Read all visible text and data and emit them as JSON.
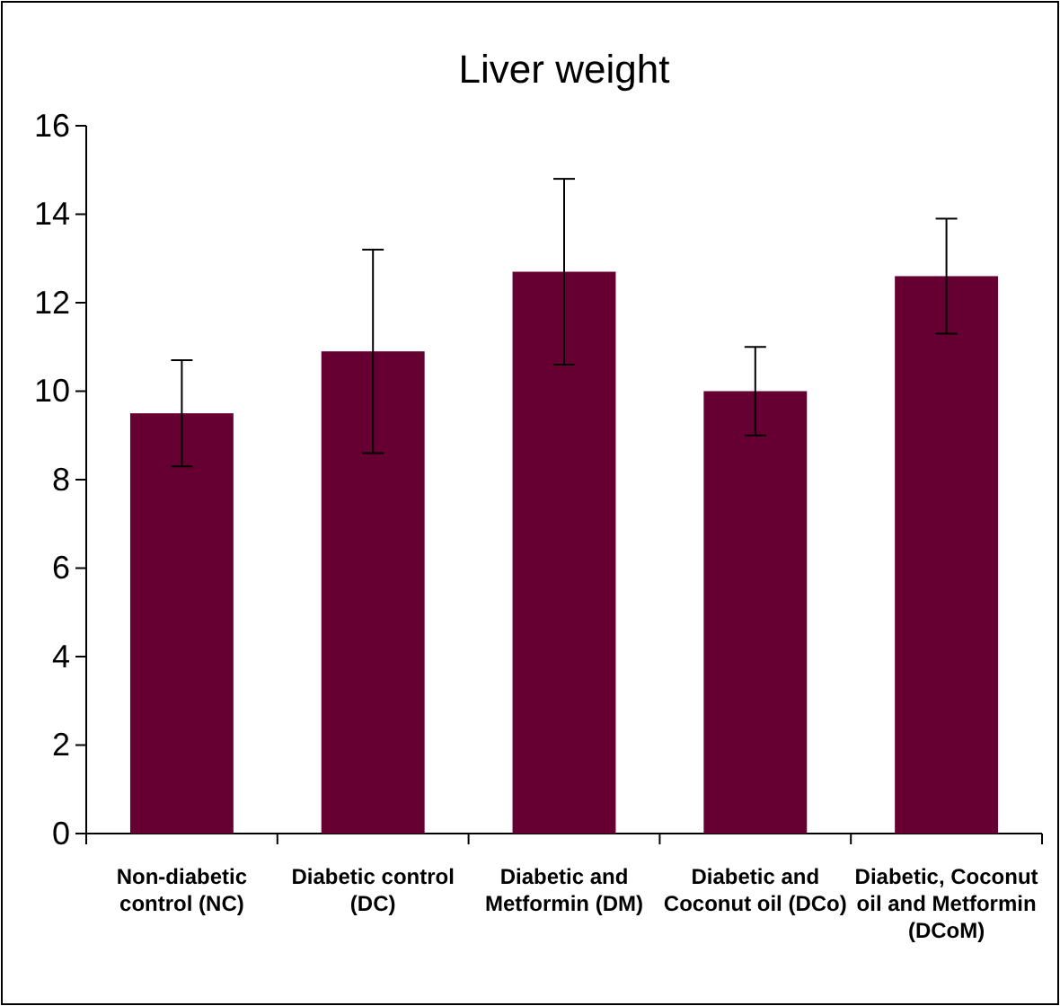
{
  "chart_data": {
    "type": "bar",
    "title": "Liver weight",
    "categories": [
      "Non-diabetic control (NC)",
      "Diabetic control (DC)",
      "Diabetic and Metformin (DM)",
      "Diabetic and Coconut oil (DCo)",
      "Diabetic, Coconut oil and Metformin (DCoM)"
    ],
    "values": [
      9.5,
      10.9,
      12.7,
      10.0,
      12.6
    ],
    "errors": [
      1.2,
      2.3,
      2.1,
      1.0,
      1.3
    ],
    "color": "#660033",
    "ylim": [
      0,
      16
    ],
    "yticks": [
      0,
      2,
      4,
      6,
      8,
      10,
      12,
      14,
      16
    ],
    "grid": false
  }
}
